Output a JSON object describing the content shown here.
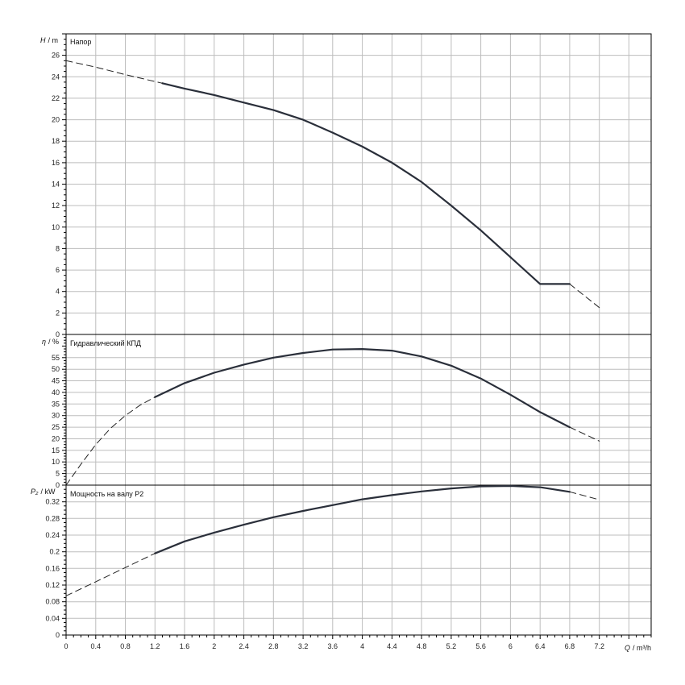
{
  "chart_data": [
    {
      "type": "line",
      "title": "Напор",
      "ylabel_symbol": "H",
      "ylabel_unit": "/ m",
      "xlim": [
        0,
        7.9
      ],
      "ylim": [
        0,
        28
      ],
      "yticks": [
        0,
        2,
        4,
        6,
        8,
        10,
        12,
        14,
        16,
        18,
        20,
        22,
        24,
        26
      ],
      "grid": true,
      "series": [
        {
          "style": "solid",
          "x": [
            1.3,
            1.6,
            2.0,
            2.4,
            2.8,
            3.2,
            3.6,
            4.0,
            4.4,
            4.8,
            5.2,
            5.6,
            6.0,
            6.4,
            6.8
          ],
          "y": [
            23.4,
            22.9,
            22.3,
            21.6,
            20.9,
            20.0,
            18.8,
            17.5,
            16.0,
            14.2,
            12.0,
            9.7,
            7.2,
            4.7,
            4.7
          ]
        },
        {
          "style": "dashed",
          "x": [
            0,
            0.4,
            0.8,
            1.3
          ],
          "y": [
            25.5,
            24.9,
            24.2,
            23.4
          ]
        },
        {
          "style": "dashed",
          "x": [
            6.8,
            7.2
          ],
          "y": [
            4.7,
            2.5
          ]
        }
      ]
    },
    {
      "type": "line",
      "title": "Гидравлический КПД",
      "ylabel_symbol": "η",
      "ylabel_unit": "/ %",
      "xlim": [
        0,
        7.9
      ],
      "ylim": [
        0,
        65
      ],
      "yticks": [
        0,
        5,
        10,
        15,
        20,
        25,
        30,
        35,
        40,
        45,
        50,
        55
      ],
      "grid": true,
      "series": [
        {
          "style": "solid",
          "x": [
            1.2,
            1.6,
            2.0,
            2.4,
            2.8,
            3.2,
            3.6,
            4.0,
            4.4,
            4.8,
            5.2,
            5.6,
            6.0,
            6.4,
            6.8
          ],
          "y": [
            38,
            44,
            48.5,
            52,
            55,
            57,
            58.5,
            58.7,
            58,
            55.5,
            51.5,
            46,
            39,
            31.5,
            25
          ]
        },
        {
          "style": "dashed",
          "x": [
            0,
            0.2,
            0.4,
            0.6,
            0.8,
            1.0,
            1.2
          ],
          "y": [
            0,
            9,
            17.5,
            24.5,
            30,
            34.5,
            38
          ]
        },
        {
          "style": "dashed",
          "x": [
            6.8,
            7.2
          ],
          "y": [
            25,
            19
          ]
        }
      ]
    },
    {
      "type": "line",
      "title": "Мощность на валу P2",
      "ylabel_symbol": "P₂",
      "ylabel_unit": "/ kW",
      "xlabel_symbol": "Q",
      "xlabel_unit": "/ m³/h",
      "xlim": [
        0,
        7.9
      ],
      "ylim": [
        0,
        0.36
      ],
      "yticks": [
        "0",
        "0.04",
        "0.08",
        "0.12",
        "0.16",
        "0.2",
        "0.24",
        "0.28",
        "0.32"
      ],
      "xticks": [
        "0",
        "0.4",
        "0.8",
        "1.2",
        "1.6",
        "2",
        "2.4",
        "2.8",
        "3.2",
        "3.6",
        "4",
        "4.4",
        "4.8",
        "5.2",
        "5.6",
        "6",
        "6.4",
        "6.8",
        "7.2"
      ],
      "grid": true,
      "series": [
        {
          "style": "solid",
          "x": [
            1.2,
            1.6,
            2.0,
            2.4,
            2.8,
            3.2,
            3.6,
            4.0,
            4.4,
            4.8,
            5.2,
            5.6,
            6.0,
            6.4,
            6.8
          ],
          "y": [
            0.196,
            0.225,
            0.246,
            0.265,
            0.283,
            0.298,
            0.312,
            0.326,
            0.336,
            0.345,
            0.352,
            0.357,
            0.358,
            0.355,
            0.344
          ]
        },
        {
          "style": "dashed",
          "x": [
            0,
            0.4,
            0.8,
            1.2
          ],
          "y": [
            0.094,
            0.128,
            0.162,
            0.196
          ]
        },
        {
          "style": "dashed",
          "x": [
            6.8,
            7.2
          ],
          "y": [
            0.344,
            0.325
          ]
        }
      ]
    }
  ]
}
